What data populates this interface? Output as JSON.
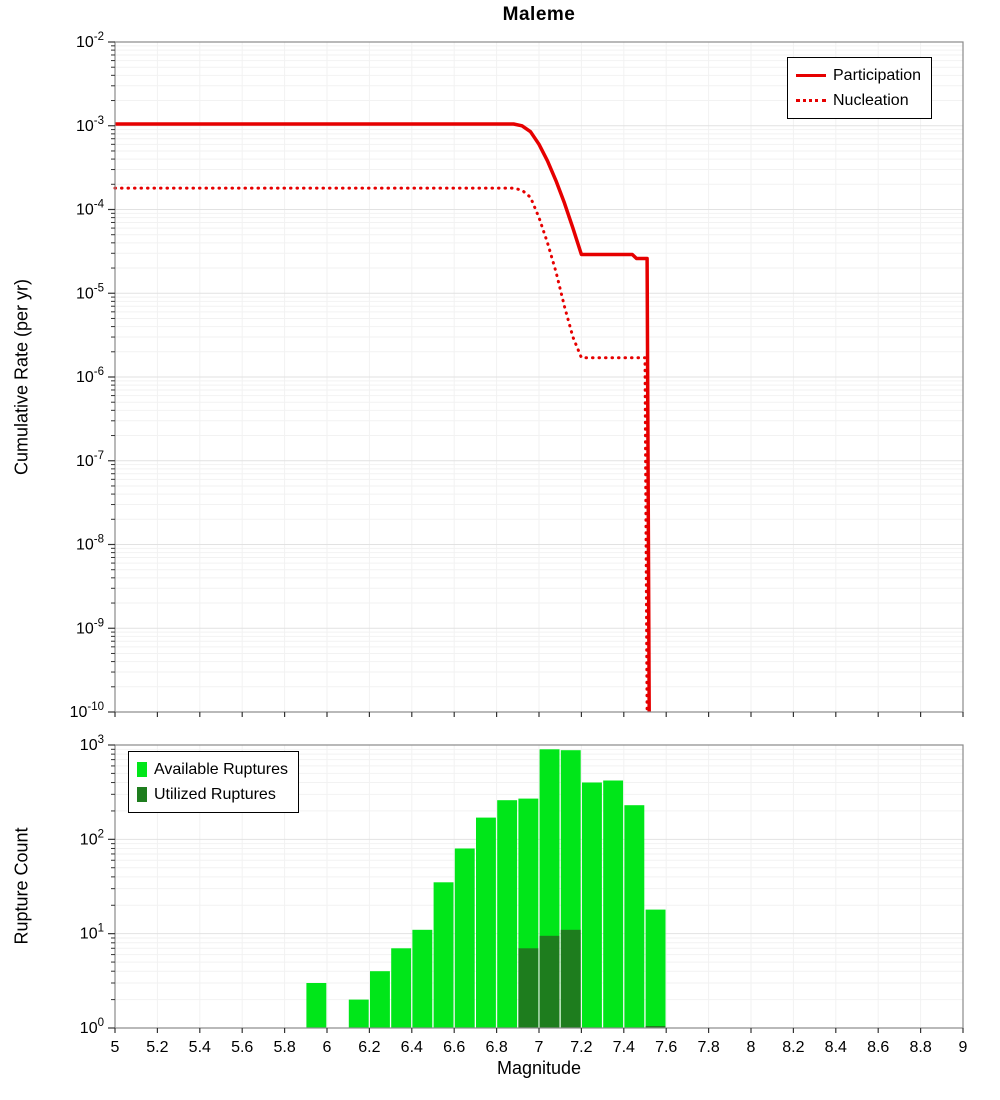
{
  "title": "Maleme",
  "colors": {
    "line_red": "#e60000",
    "available_green": "#00e619",
    "utilized_green": "#1e7d1e",
    "grid_major": "#e2e2e2",
    "grid_minor": "#f2f2f2",
    "frame": "#8a8a8a"
  },
  "chart_data": [
    {
      "type": "line",
      "title": "Maleme",
      "xlabel": "",
      "ylabel": "Cumulative Rate (per yr)",
      "xlim": [
        5,
        9
      ],
      "ylim": [
        1e-10,
        0.01
      ],
      "x_tick_step": 0.2,
      "grid": true,
      "legend_position": "top-right",
      "series": [
        {
          "name": "Participation",
          "style": "solid",
          "color": "#e60000",
          "points": [
            [
              5.0,
              0.00105
            ],
            [
              6.88,
              0.00105
            ],
            [
              6.92,
              0.001
            ],
            [
              6.96,
              0.00085
            ],
            [
              7.0,
              0.0006
            ],
            [
              7.04,
              0.00038
            ],
            [
              7.08,
              0.00022
            ],
            [
              7.12,
              0.00012
            ],
            [
              7.16,
              6e-05
            ],
            [
              7.2,
              2.9e-05
            ],
            [
              7.44,
              2.9e-05
            ],
            [
              7.46,
              2.6e-05
            ],
            [
              7.51,
              2.6e-05
            ],
            [
              7.52,
              1e-10
            ]
          ]
        },
        {
          "name": "Nucleation",
          "style": "dotted",
          "color": "#e60000",
          "points": [
            [
              5.0,
              0.00018
            ],
            [
              6.88,
              0.00018
            ],
            [
              6.92,
              0.00017
            ],
            [
              6.96,
              0.00014
            ],
            [
              7.0,
              8e-05
            ],
            [
              7.04,
              4e-05
            ],
            [
              7.08,
              1.8e-05
            ],
            [
              7.12,
              7e-06
            ],
            [
              7.16,
              3e-06
            ],
            [
              7.2,
              1.7e-06
            ],
            [
              7.5,
              1.7e-06
            ],
            [
              7.51,
              1e-10
            ]
          ]
        }
      ]
    },
    {
      "type": "bar",
      "xlabel": "Magnitude",
      "ylabel": "Rupture Count",
      "xlim": [
        5,
        9
      ],
      "ylim": [
        1,
        1000
      ],
      "x_tick_step": 0.2,
      "bin_width": 0.1,
      "grid": true,
      "legend_position": "top-left",
      "legend": [
        {
          "label": "Available Ruptures",
          "color": "#00e619"
        },
        {
          "label": "Utilized Ruptures",
          "color": "#1e7d1e"
        }
      ],
      "available": {
        "centers": [
          5.95,
          6.15,
          6.25,
          6.35,
          6.45,
          6.55,
          6.65,
          6.75,
          6.85,
          6.95,
          7.05,
          7.15,
          7.25,
          7.35,
          7.45,
          7.55
        ],
        "values": [
          3,
          2,
          4,
          7,
          11,
          35,
          80,
          170,
          260,
          270,
          900,
          880,
          400,
          420,
          230,
          18
        ]
      },
      "utilized": {
        "centers": [
          6.95,
          7.05,
          7.15,
          7.55
        ],
        "values": [
          7,
          9.5,
          11,
          1.05
        ]
      }
    }
  ]
}
